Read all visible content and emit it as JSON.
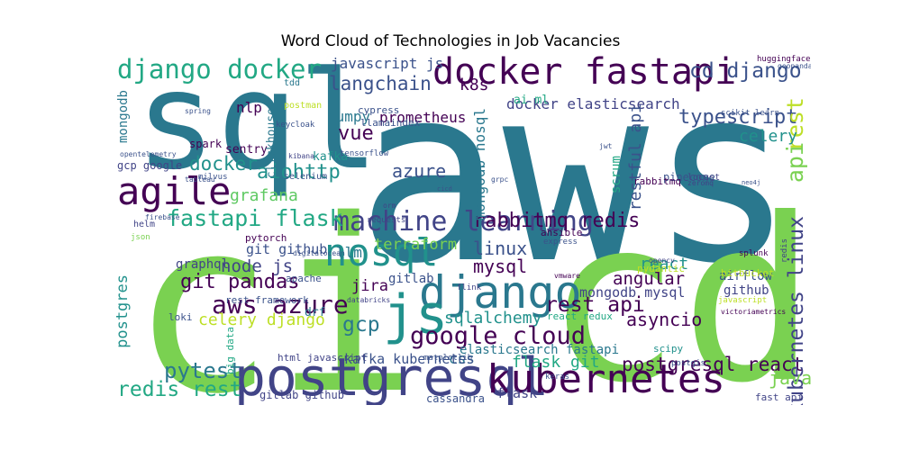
{
  "chart_data": {
    "type": "wordcloud",
    "title": "Word Cloud of Technologies in Job Vacancies",
    "background": "#ffffff",
    "colormap": "viridis",
    "words": [
      {
        "text": "aws",
        "color": "#2a788e"
      },
      {
        "text": "ci",
        "color": "#7ad151"
      },
      {
        "text": "cd",
        "color": "#7ad151"
      },
      {
        "text": "sql",
        "color": "#2a788e"
      },
      {
        "text": "postgresql",
        "color": "#414487"
      },
      {
        "text": "docker fastapi",
        "color": "#440154"
      },
      {
        "text": "django docker",
        "color": "#22a884"
      },
      {
        "text": "kubernetes",
        "color": "#440154"
      },
      {
        "text": "django",
        "color": "#2a788e"
      },
      {
        "text": "nosql",
        "color": "#21918c"
      },
      {
        "text": "js",
        "color": "#21918c"
      },
      {
        "text": "machine learning",
        "color": "#414487"
      },
      {
        "text": "agile",
        "color": "#440154"
      },
      {
        "text": "fastapi flask",
        "color": "#22a884"
      },
      {
        "text": "google cloud",
        "color": "#440154"
      },
      {
        "text": "aws azure",
        "color": "#440154"
      },
      {
        "text": "rabbitmq redis",
        "color": "#440154"
      },
      {
        "text": "cd django",
        "color": "#3b528b"
      },
      {
        "text": "typescript",
        "color": "#3b528b"
      },
      {
        "text": "pytest",
        "color": "#2a788e"
      },
      {
        "text": "redis rest",
        "color": "#22a884"
      },
      {
        "text": "postgresql react",
        "color": "#440154"
      },
      {
        "text": "kubernetes linux",
        "color": "#414487"
      },
      {
        "text": "langchain",
        "color": "#3b528b"
      },
      {
        "text": "javascript js",
        "color": "#3b528b"
      },
      {
        "text": "docker elasticsearch",
        "color": "#414487"
      },
      {
        "text": "k8s",
        "color": "#440154"
      },
      {
        "text": "rest",
        "color": "#bddf26"
      },
      {
        "text": "api",
        "color": "#7ad151"
      },
      {
        "text": "celery",
        "color": "#21918c"
      },
      {
        "text": "restful api",
        "color": "#3b528b"
      },
      {
        "text": "scrum",
        "color": "#22a884"
      },
      {
        "text": "docker",
        "color": "#21918c"
      },
      {
        "text": "aiohttp",
        "color": "#21918c"
      },
      {
        "text": "vue",
        "color": "#440154"
      },
      {
        "text": "numpy",
        "color": "#2a788e"
      },
      {
        "text": "prometheus",
        "color": "#440154"
      },
      {
        "text": "mongodb nosql",
        "color": "#2a788e"
      },
      {
        "text": "azure",
        "color": "#3b528b"
      },
      {
        "text": "grafana",
        "color": "#5ec962"
      },
      {
        "text": "terraform",
        "color": "#7ad151"
      },
      {
        "text": "linux",
        "color": "#3b528b"
      },
      {
        "text": "mysql",
        "color": "#440154"
      },
      {
        "text": "llm",
        "color": "#2a788e"
      },
      {
        "text": "git pandas",
        "color": "#440154"
      },
      {
        "text": "node js",
        "color": "#414487"
      },
      {
        "text": "git github",
        "color": "#3b528b"
      },
      {
        "text": "graphql",
        "color": "#414487"
      },
      {
        "text": "celery django",
        "color": "#bddf26"
      },
      {
        "text": "gcp",
        "color": "#2a788e"
      },
      {
        "text": "jira",
        "color": "#440154"
      },
      {
        "text": "gitlab",
        "color": "#3b528b"
      },
      {
        "text": "sqlalchemy",
        "color": "#21918c"
      },
      {
        "text": "rest api",
        "color": "#440154"
      },
      {
        "text": "angular",
        "color": "#440154"
      },
      {
        "text": "react",
        "color": "#21918c"
      },
      {
        "text": "mongodb mysql",
        "color": "#414487"
      },
      {
        "text": "asyncio",
        "color": "#440154"
      },
      {
        "text": "github",
        "color": "#414487"
      },
      {
        "text": "airflow",
        "color": "#3b528b"
      },
      {
        "text": "java",
        "color": "#7ad151"
      },
      {
        "text": "flask git",
        "color": "#22a884"
      },
      {
        "text": "css",
        "color": "#2a788e"
      },
      {
        "text": "flask",
        "color": "#414487"
      },
      {
        "text": "kafka kubernetes",
        "color": "#3b528b"
      },
      {
        "text": "elasticsearch fastapi",
        "color": "#2a788e"
      },
      {
        "text": "gitlab github",
        "color": "#414487"
      },
      {
        "text": "cassandra",
        "color": "#3b528b"
      },
      {
        "text": "postgres",
        "color": "#21918c"
      },
      {
        "text": "mongodb",
        "color": "#2a788e"
      },
      {
        "text": "nlp",
        "color": "#440154"
      },
      {
        "text": "sentry",
        "color": "#440154"
      },
      {
        "text": "spark",
        "color": "#440154"
      },
      {
        "text": "gcp google",
        "color": "#414487"
      },
      {
        "text": "clickhouse",
        "color": "#2a788e"
      },
      {
        "text": "kafka",
        "color": "#21918c"
      },
      {
        "text": "ai ml",
        "color": "#22a884"
      },
      {
        "text": "cypress",
        "color": "#3b528b"
      },
      {
        "text": "llamaindex",
        "color": "#3b528b"
      },
      {
        "text": "pinecone",
        "color": "#3b528b"
      },
      {
        "text": "rabbitmq",
        "color": "#440154"
      },
      {
        "text": "locust",
        "color": "#414487"
      },
      {
        "text": "pytorch",
        "color": "#440154"
      },
      {
        "text": "rest framework",
        "color": "#3b528b"
      },
      {
        "text": "apache",
        "color": "#3b528b"
      },
      {
        "text": "loki",
        "color": "#3b528b"
      },
      {
        "text": "drf",
        "color": "#2a788e"
      },
      {
        "text": "html javascript",
        "color": "#414487"
      },
      {
        "text": "bitbucket",
        "color": "#bddf26"
      },
      {
        "text": "ansible",
        "color": "#440154"
      },
      {
        "text": "react redux",
        "color": "#22a884"
      },
      {
        "text": "fast api",
        "color": "#414487"
      },
      {
        "text": "big data",
        "color": "#22a884"
      },
      {
        "text": "pydantic",
        "color": "#bddf26"
      },
      {
        "text": "scipy",
        "color": "#21918c"
      },
      {
        "text": "helm",
        "color": "#414487"
      },
      {
        "text": "selenium",
        "color": "#3b528b"
      },
      {
        "text": "tdd",
        "color": "#2a788e"
      },
      {
        "text": "postman",
        "color": "#bddf26"
      },
      {
        "text": "tensorflow",
        "color": "#3b528b"
      },
      {
        "text": "opentelemetry",
        "color": "#3b528b"
      },
      {
        "text": "huggingface",
        "color": "#440154"
      },
      {
        "text": "scikit learn",
        "color": "#3b528b"
      },
      {
        "text": "json",
        "color": "#7ad151"
      },
      {
        "text": "milvus",
        "color": "#3b528b"
      },
      {
        "text": "tableau",
        "color": "#3b528b"
      },
      {
        "text": "express",
        "color": "#3b528b"
      },
      {
        "text": "splunk",
        "color": "#440154"
      },
      {
        "text": "keras",
        "color": "#3b528b"
      },
      {
        "text": "matplotlib",
        "color": "#3b528b"
      },
      {
        "text": "flink",
        "color": "#414487"
      },
      {
        "text": "requests",
        "color": "#414487"
      },
      {
        "text": "firebase",
        "color": "#3b528b"
      },
      {
        "text": "opencv",
        "color": "#414487"
      },
      {
        "text": "javascript",
        "color": "#bddf26"
      },
      {
        "text": "redis",
        "color": "#414487"
      },
      {
        "text": "zeromq",
        "color": "#414487"
      },
      {
        "text": "neo4j",
        "color": "#3b528b"
      },
      {
        "text": "keycloak",
        "color": "#3b528b"
      },
      {
        "text": "kibana",
        "color": "#414487"
      },
      {
        "text": "databricks",
        "color": "#414487"
      },
      {
        "text": "orm",
        "color": "#414487"
      },
      {
        "text": "digitalocean",
        "color": "#3b528b"
      },
      {
        "text": "postgis",
        "color": "#3b528b"
      },
      {
        "text": "victoriametrics",
        "color": "#440154"
      },
      {
        "text": "grpc",
        "color": "#3b528b"
      },
      {
        "text": "cicd",
        "color": "#3b528b"
      },
      {
        "text": "spring",
        "color": "#3b528b"
      },
      {
        "text": "geopandas",
        "color": "#3b528b"
      },
      {
        "text": "vmware",
        "color": "#440154"
      },
      {
        "text": "jwt",
        "color": "#3b528b"
      }
    ]
  }
}
